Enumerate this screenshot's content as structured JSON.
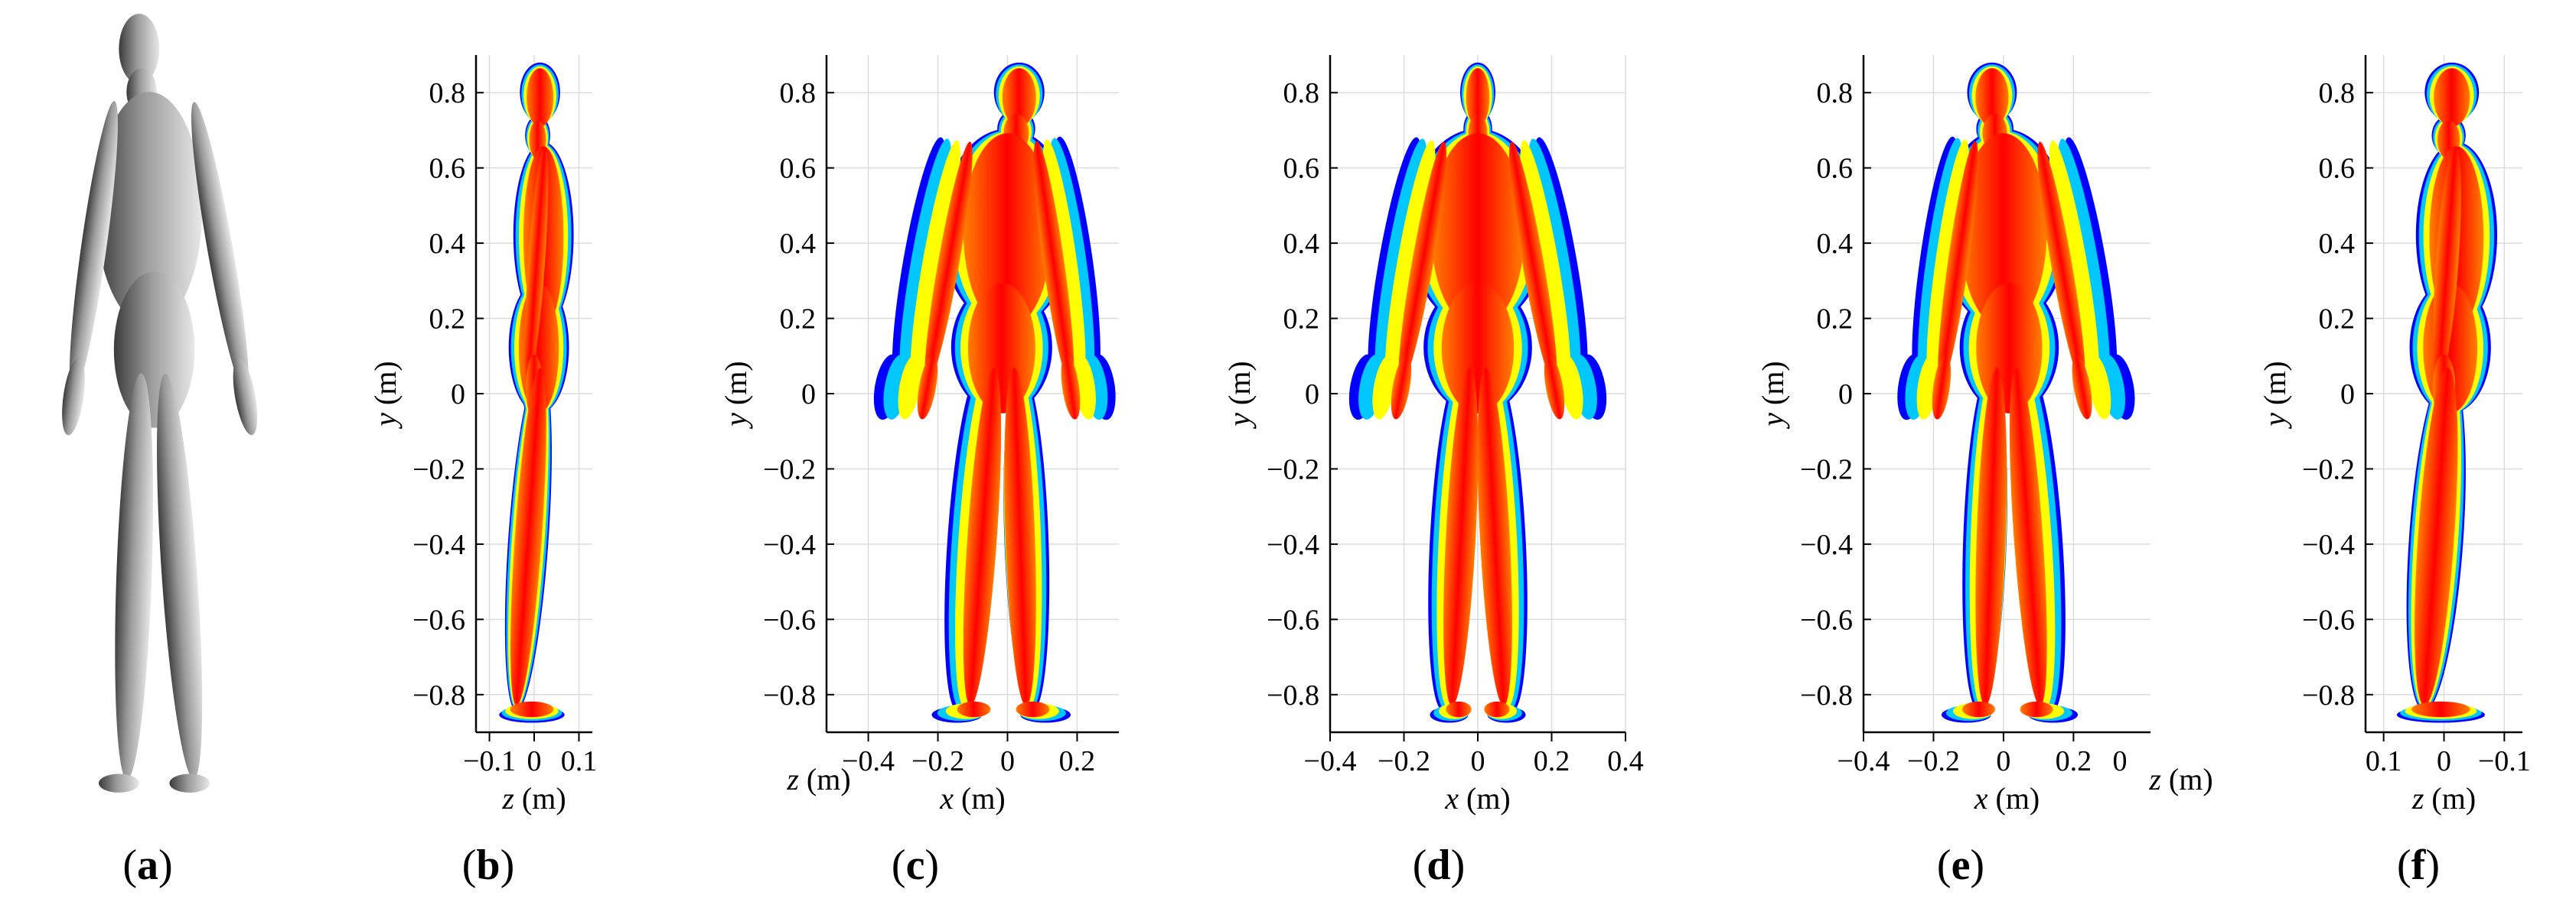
{
  "colors": {
    "scale": [
      "#00008b",
      "#0000ff",
      "#00c8ff",
      "#00ffa0",
      "#ffff00",
      "#ff8000",
      "#ff0000"
    ],
    "body_gray": [
      "#3a3a3a",
      "#9a9a9a",
      "#e8e8e8"
    ],
    "grid": "#dcdcdc",
    "axis": "#000000"
  },
  "panels": [
    {
      "id": "a",
      "label_open": "(",
      "label_letter": "a",
      "label_close": ")",
      "view": "render-side"
    },
    {
      "id": "b",
      "label_open": "(",
      "label_letter": "b",
      "label_close": ")",
      "view": "side",
      "ylabel_var": "y",
      "ylabel_unit": " (m)",
      "xlabel_var": "z",
      "xlabel_unit": " (m)",
      "yticks": [
        "0.8",
        "0.6",
        "0.4",
        "0.2",
        "0",
        "-0.2",
        "-0.4",
        "-0.6",
        "-0.8"
      ],
      "xticks": [
        "-0.1",
        "0",
        "0.1"
      ]
    },
    {
      "id": "c",
      "label_open": "(",
      "label_letter": "c",
      "label_close": ")",
      "view": "three-quarter-right",
      "ylabel_var": "y",
      "ylabel_unit": " (m)",
      "xlabel_var": "x",
      "xlabel_unit": " (m)",
      "xlabel2_var": "z",
      "xlabel2_unit": " (m)",
      "yticks": [
        "0.8",
        "0.6",
        "0.4",
        "0.2",
        "0",
        "-0.2",
        "-0.4",
        "-0.6",
        "-0.8"
      ],
      "xticks": [
        "-0.4",
        "-0.2",
        "0",
        "0.2"
      ]
    },
    {
      "id": "d",
      "label_open": "(",
      "label_letter": "d",
      "label_close": ")",
      "view": "front",
      "ylabel_var": "y",
      "ylabel_unit": " (m)",
      "xlabel_var": "x",
      "xlabel_unit": " (m)",
      "yticks": [
        "0.8",
        "0.6",
        "0.4",
        "0.2",
        "0",
        "-0.2",
        "-0.4",
        "-0.6",
        "-0.8"
      ],
      "xticks": [
        "-0.4",
        "-0.2",
        "0",
        "0.2",
        "0.4"
      ]
    },
    {
      "id": "e",
      "label_open": "(",
      "label_letter": "e",
      "label_close": ")",
      "view": "three-quarter-left",
      "ylabel_var": "y",
      "ylabel_unit": " (m)",
      "xlabel_var": "x",
      "xlabel_unit": " (m)",
      "xlabel2_var": "z",
      "xlabel2_unit": " (m)",
      "yticks": [
        "0.8",
        "0.6",
        "0.4",
        "0.2",
        "0",
        "-0.2",
        "-0.4",
        "-0.6",
        "-0.8"
      ],
      "xticks": [
        "-0.4",
        "-0.2",
        "0",
        "0.2"
      ],
      "xticks2": [
        "0"
      ]
    },
    {
      "id": "f",
      "label_open": "(",
      "label_letter": "f",
      "label_close": ")",
      "view": "side",
      "ylabel_var": "y",
      "ylabel_unit": " (m)",
      "xlabel_var": "z",
      "xlabel_unit": " (m)",
      "yticks": [
        "0.8",
        "0.6",
        "0.4",
        "0.2",
        "0",
        "-0.2",
        "-0.4",
        "-0.6",
        "-0.8"
      ],
      "xticks": [
        "0.1",
        "0",
        "-0.1"
      ]
    }
  ],
  "chart_data": [
    {
      "type": "heatmap",
      "panel": "b",
      "xlabel": "z (m)",
      "ylabel": "y (m)",
      "xlim": [
        -0.13,
        0.13
      ],
      "ylim": [
        -0.9,
        0.9
      ],
      "grid": true,
      "yticks": [
        0.8,
        0.6,
        0.4,
        0.2,
        0,
        -0.2,
        -0.4,
        -0.6,
        -0.8
      ],
      "xticks": [
        -0.1,
        0,
        0.1
      ]
    },
    {
      "type": "heatmap",
      "panel": "c",
      "xlabel": "x (m)",
      "ylabel": "y (m)",
      "xlim": [
        -0.52,
        0.32
      ],
      "ylim": [
        -0.9,
        0.9
      ],
      "grid": true,
      "yticks": [
        0.8,
        0.6,
        0.4,
        0.2,
        0,
        -0.2,
        -0.4,
        -0.6,
        -0.8
      ],
      "xticks": [
        -0.4,
        -0.2,
        0,
        0.2
      ]
    },
    {
      "type": "heatmap",
      "panel": "d",
      "xlabel": "x (m)",
      "ylabel": "y (m)",
      "xlim": [
        -0.4,
        0.4
      ],
      "ylim": [
        -0.9,
        0.9
      ],
      "grid": true,
      "yticks": [
        0.8,
        0.6,
        0.4,
        0.2,
        0,
        -0.2,
        -0.4,
        -0.6,
        -0.8
      ],
      "xticks": [
        -0.4,
        -0.2,
        0,
        0.2,
        0.4
      ]
    },
    {
      "type": "heatmap",
      "panel": "e",
      "xlabel": "x (m)",
      "ylabel": "y (m)",
      "xlim": [
        -0.4,
        0.42
      ],
      "ylim": [
        -0.9,
        0.9
      ],
      "grid": true,
      "yticks": [
        0.8,
        0.6,
        0.4,
        0.2,
        0,
        -0.2,
        -0.4,
        -0.6,
        -0.8
      ],
      "xticks": [
        -0.4,
        -0.2,
        0,
        0.2
      ]
    },
    {
      "type": "heatmap",
      "panel": "f",
      "xlabel": "z (m)",
      "ylabel": "y (m)",
      "xlim": [
        0.13,
        -0.13
      ],
      "ylim": [
        -0.9,
        0.9
      ],
      "grid": true,
      "yticks": [
        0.8,
        0.6,
        0.4,
        0.2,
        0,
        -0.2,
        -0.4,
        -0.6,
        -0.8
      ],
      "xticks": [
        0.1,
        0,
        -0.1
      ]
    }
  ]
}
